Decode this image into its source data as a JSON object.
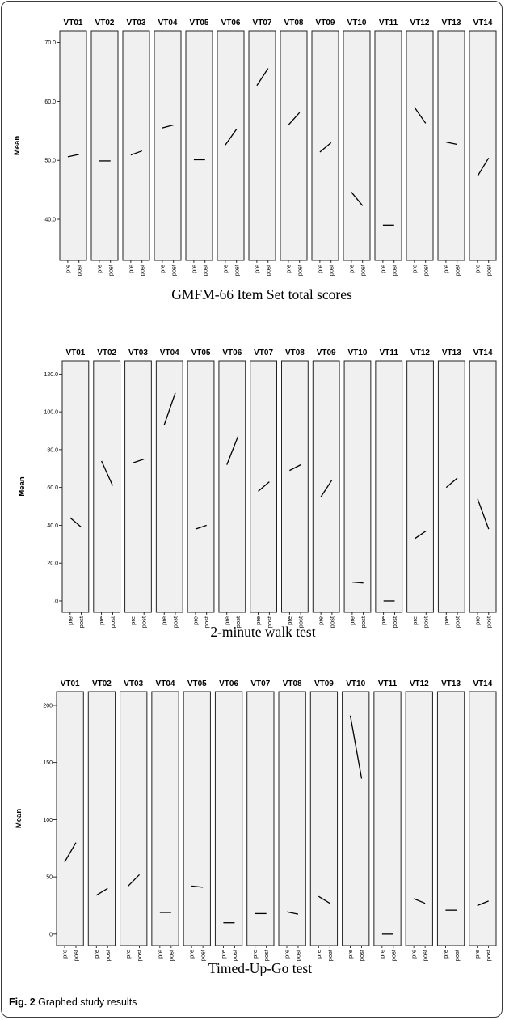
{
  "figure": {
    "label": "Fig. 2",
    "caption": "Graphed study results"
  },
  "chart_data": [
    {
      "type": "line",
      "caption": "GMFM-66 Item Set total scores",
      "ylabel": "Mean",
      "ylim": [
        33,
        72
      ],
      "yticks": [
        40,
        50,
        60,
        70
      ],
      "ytick_labels": [
        "40.0",
        "50.0",
        "60.0",
        "70.0"
      ],
      "categories": [
        "pre",
        "post"
      ],
      "panels": [
        {
          "name": "VT01",
          "values": [
            50.6,
            51.0
          ]
        },
        {
          "name": "VT02",
          "values": [
            49.9,
            49.9
          ]
        },
        {
          "name": "VT03",
          "values": [
            50.9,
            51.6
          ]
        },
        {
          "name": "VT04",
          "values": [
            55.5,
            56.0
          ]
        },
        {
          "name": "VT05",
          "values": [
            50.1,
            50.1
          ]
        },
        {
          "name": "VT06",
          "values": [
            52.6,
            55.3
          ]
        },
        {
          "name": "VT07",
          "values": [
            62.7,
            65.6
          ]
        },
        {
          "name": "VT08",
          "values": [
            56.0,
            58.1
          ]
        },
        {
          "name": "VT09",
          "values": [
            51.4,
            53.0
          ]
        },
        {
          "name": "VT10",
          "values": [
            44.6,
            42.3
          ]
        },
        {
          "name": "VT11",
          "values": [
            39.0,
            39.0
          ]
        },
        {
          "name": "VT12",
          "values": [
            59.0,
            56.3
          ]
        },
        {
          "name": "VT13",
          "values": [
            53.1,
            52.7
          ]
        },
        {
          "name": "VT14",
          "values": [
            47.3,
            50.4
          ]
        }
      ]
    },
    {
      "type": "line",
      "caption": "2-minute walk test",
      "ylabel": "Mean",
      "ylim": [
        -6,
        127
      ],
      "yticks": [
        0,
        20,
        40,
        60,
        80,
        100,
        120
      ],
      "ytick_labels": [
        ".0",
        "20.0",
        "40.0",
        "60.0",
        "80.0",
        "100.0",
        "120.0"
      ],
      "categories": [
        "pre",
        "post"
      ],
      "panels": [
        {
          "name": "VT01",
          "values": [
            44,
            39
          ]
        },
        {
          "name": "VT02",
          "values": [
            74,
            61
          ]
        },
        {
          "name": "VT03",
          "values": [
            73,
            75
          ]
        },
        {
          "name": "VT04",
          "values": [
            93,
            110
          ]
        },
        {
          "name": "VT05",
          "values": [
            38,
            40
          ]
        },
        {
          "name": "VT06",
          "values": [
            72,
            87
          ]
        },
        {
          "name": "VT07",
          "values": [
            58,
            63
          ]
        },
        {
          "name": "VT08",
          "values": [
            69,
            72
          ]
        },
        {
          "name": "VT09",
          "values": [
            55,
            64
          ]
        },
        {
          "name": "VT10",
          "values": [
            10,
            9.5
          ]
        },
        {
          "name": "VT11",
          "values": [
            0,
            0
          ]
        },
        {
          "name": "VT12",
          "values": [
            33,
            37
          ]
        },
        {
          "name": "VT13",
          "values": [
            60,
            65
          ]
        },
        {
          "name": "VT14",
          "values": [
            54,
            38
          ]
        }
      ]
    },
    {
      "type": "line",
      "caption": "Timed-Up-Go test",
      "ylabel": "Mean",
      "ylim": [
        -10,
        212
      ],
      "yticks": [
        0,
        50,
        100,
        150,
        200
      ],
      "ytick_labels": [
        "0",
        "50",
        "100",
        "150",
        "200"
      ],
      "categories": [
        "pre",
        "post"
      ],
      "panels": [
        {
          "name": "VT01",
          "values": [
            63,
            80
          ]
        },
        {
          "name": "VT02",
          "values": [
            34,
            40
          ]
        },
        {
          "name": "VT03",
          "values": [
            42,
            52
          ]
        },
        {
          "name": "VT04",
          "values": [
            19,
            19
          ]
        },
        {
          "name": "VT05",
          "values": [
            42,
            41
          ]
        },
        {
          "name": "VT06",
          "values": [
            10,
            10
          ]
        },
        {
          "name": "VT07",
          "values": [
            18,
            18
          ]
        },
        {
          "name": "VT08",
          "values": [
            19.5,
            17.5
          ]
        },
        {
          "name": "VT09",
          "values": [
            33,
            27
          ]
        },
        {
          "name": "VT10",
          "values": [
            191,
            136
          ]
        },
        {
          "name": "VT11",
          "values": [
            0,
            0
          ]
        },
        {
          "name": "VT12",
          "values": [
            31,
            27
          ]
        },
        {
          "name": "VT13",
          "values": [
            21,
            21
          ]
        },
        {
          "name": "VT14",
          "values": [
            25,
            29
          ]
        }
      ]
    }
  ]
}
